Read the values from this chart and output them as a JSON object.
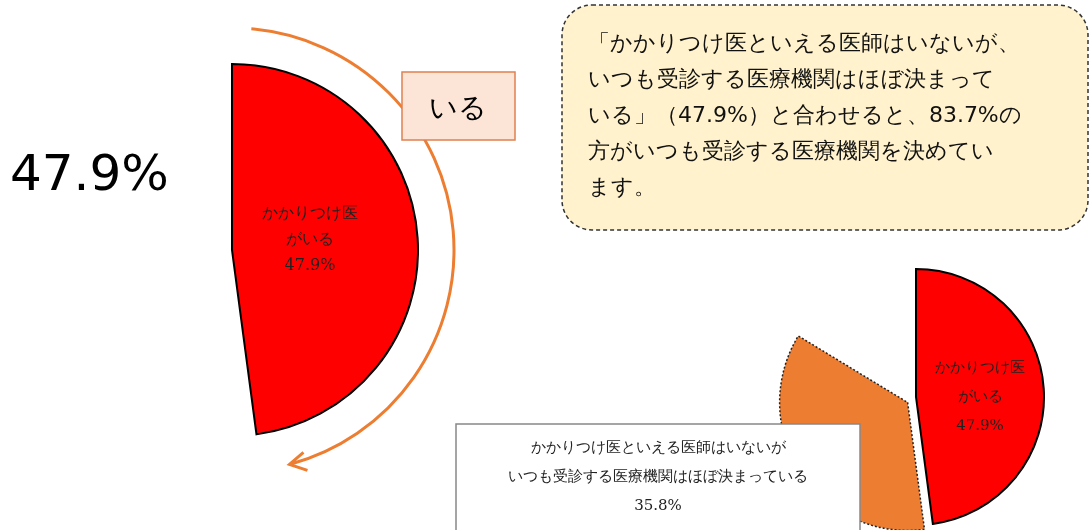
{
  "chart_data": [
    {
      "type": "pie",
      "categories": [
        "かかりつけ医がいる"
      ],
      "values": [
        47.9
      ],
      "colors": [
        "#ff0000"
      ],
      "value_labels": [
        "47.9%"
      ],
      "annotations": [
        "47.9%",
        "いる"
      ]
    },
    {
      "type": "pie",
      "categories": [
        "かかりつけ医がいる",
        "かかりつけ医といえる医師はいないがいつも受診する医療機関はほぼ決まっている"
      ],
      "values": [
        47.9,
        35.8
      ],
      "colors": [
        "#ff0000",
        "#ed7d31"
      ],
      "value_labels": [
        "47.9%",
        "35.8%"
      ],
      "annotations": [
        "「かかりつけ医といえる医師はいないが、いつも受診する医療機関はほぼ決まっている」（47.9%）と合わせると、83.7%の方がいつも受診する医療機関を決めています。"
      ]
    }
  ]
}
